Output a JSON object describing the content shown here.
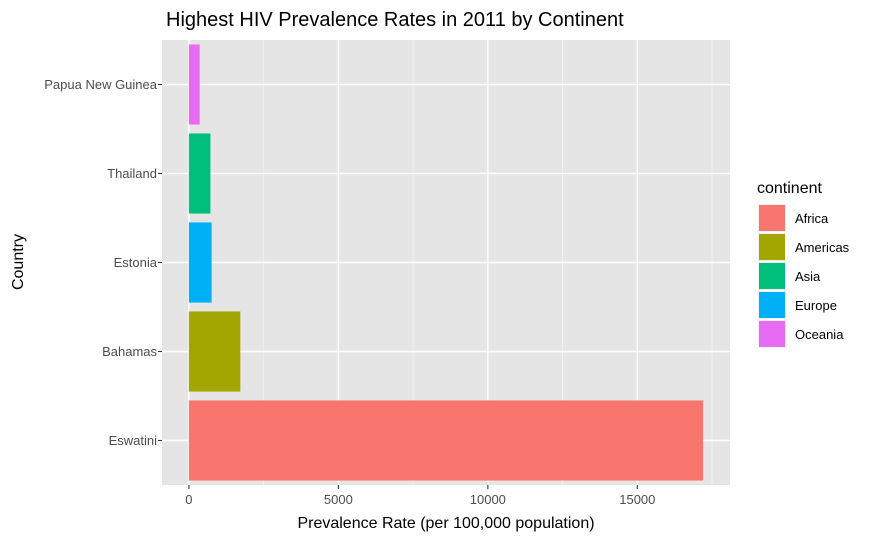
{
  "chart_data": {
    "type": "bar",
    "orientation": "horizontal",
    "title": "Highest HIV Prevalence Rates in 2011 by Continent",
    "xlabel": "Prevalence Rate (per 100,000 population)",
    "ylabel": "Country",
    "xlim": [
      -900,
      18100
    ],
    "x_ticks": [
      0,
      5000,
      10000,
      15000
    ],
    "x_tick_labels": [
      "0",
      "5000",
      "10000",
      "15000"
    ],
    "categories": [
      "Eswatini",
      "Bahamas",
      "Estonia",
      "Thailand",
      "Papua New Guinea"
    ],
    "values": [
      17200,
      1720,
      760,
      720,
      360
    ],
    "bar_continents": [
      "Africa",
      "Americas",
      "Europe",
      "Asia",
      "Oceania"
    ],
    "grid": true,
    "background": "#E5E5E5",
    "legend": {
      "title": "continent",
      "position": "right",
      "entries": [
        {
          "label": "Africa",
          "color": "#F8766D"
        },
        {
          "label": "Americas",
          "color": "#A3A500"
        },
        {
          "label": "Asia",
          "color": "#00BF7D"
        },
        {
          "label": "Europe",
          "color": "#00B0F6"
        },
        {
          "label": "Oceania",
          "color": "#E76BF3"
        }
      ]
    }
  }
}
